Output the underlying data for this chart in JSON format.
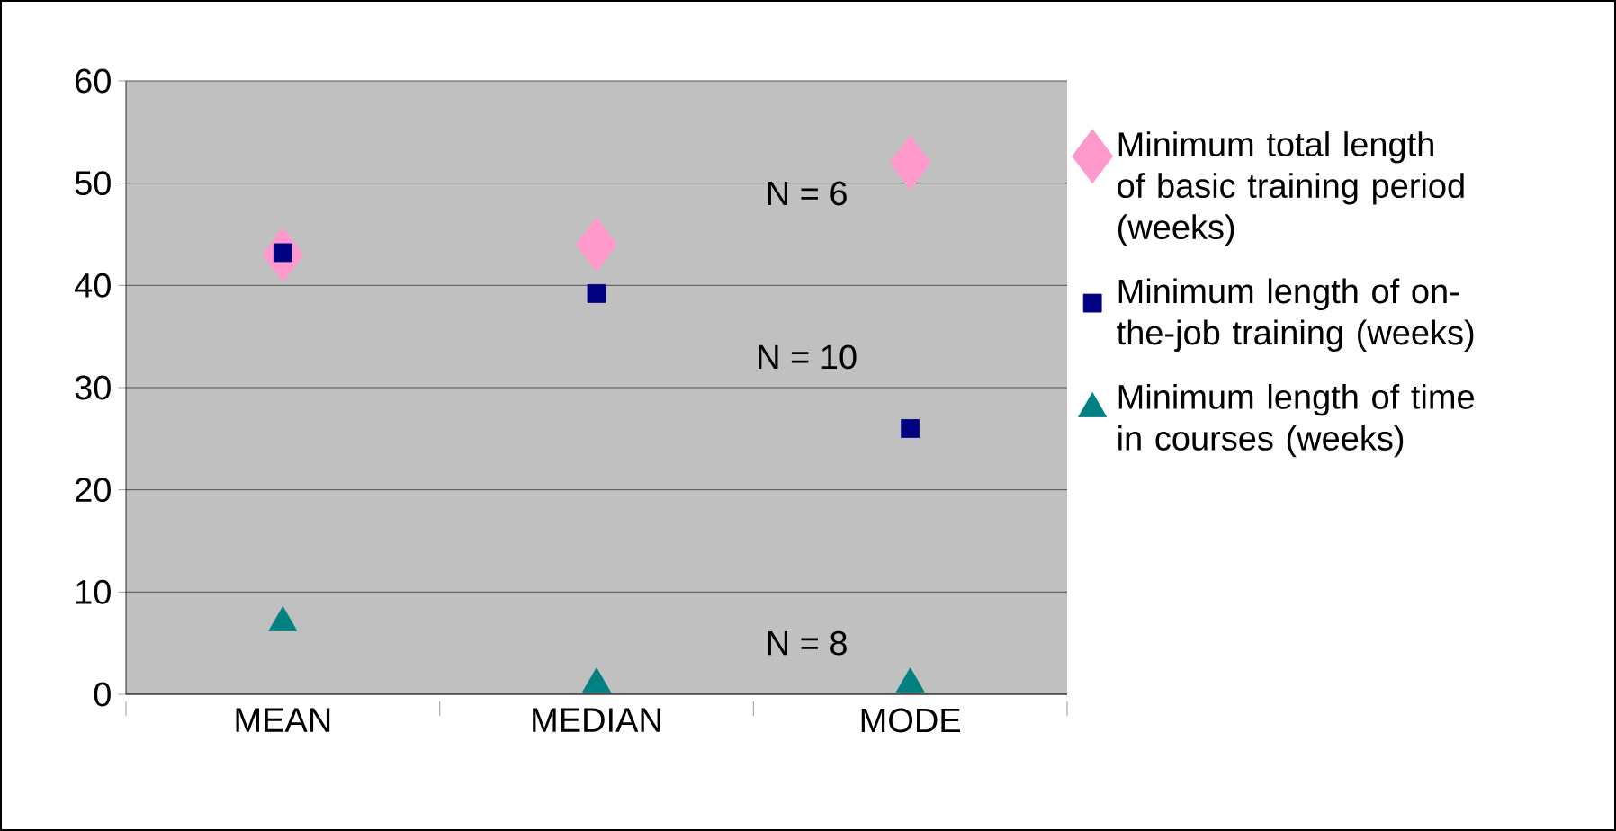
{
  "chart_data": {
    "type": "scatter",
    "categories": [
      "MEAN",
      "MEDIAN",
      "MODE"
    ],
    "series": [
      {
        "name": "Minimum total length of basic training period (weeks)",
        "color": "#ff99cc",
        "marker": "diamond",
        "values": [
          43,
          44,
          52
        ]
      },
      {
        "name": "Minimum length of on-the-job training (weeks)",
        "color": "#000080",
        "marker": "square",
        "values": [
          43.2,
          39.2,
          26
        ]
      },
      {
        "name": "Minimum length of time in courses (weeks)",
        "color": "#008080",
        "marker": "triangle",
        "values": [
          7,
          1,
          1
        ]
      }
    ],
    "ylim": [
      0,
      60
    ],
    "yticks": [
      0,
      10,
      20,
      30,
      40,
      50,
      60
    ],
    "grid": "y",
    "legend": "right",
    "annotations": [
      "N = 6",
      "N = 10",
      "N = 8"
    ]
  }
}
